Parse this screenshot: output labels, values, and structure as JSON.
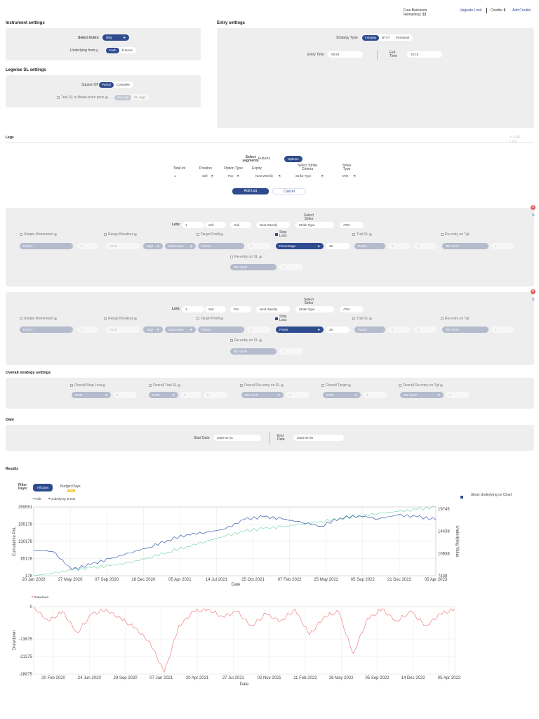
{
  "top": {
    "free_backtests": "Free Backtests",
    "remaining_label": "Remaining:",
    "remaining_value": "22",
    "upgrade": "Upgrade Limit",
    "credits_label": "Credits:",
    "credits_value": "6",
    "add_credits": "Add Credits"
  },
  "instrument": {
    "title": "Instrument settings",
    "select_index_label": "Select Index:",
    "select_index_value": "Nifty",
    "underlying_label": "Underlying from",
    "underlying_options": [
      "Cash",
      "Futures"
    ]
  },
  "legwise_sl": {
    "title": "Legwise SL settings",
    "square_off_label": "Square Off",
    "square_off_options": [
      "Partial",
      "Complete"
    ],
    "trail_label": "Trail SL to Break-even price",
    "trail_options": [
      "All Legs",
      "SL Legs"
    ]
  },
  "entry": {
    "title": "Entry settings",
    "strategy_type_label": "Strategy Type",
    "strategy_type_options": [
      "Intraday",
      "BTST",
      "Positional"
    ],
    "entry_time_label": "Entry Time",
    "entry_time_value": "09:20",
    "exit_time_label": "Exit Time",
    "exit_time_value": "15:15"
  },
  "legs": {
    "title": "Legs",
    "add_leg_corner": "+ Add Leg",
    "select_segments_label": "Select segments",
    "segments": [
      "Futures",
      "Options"
    ],
    "total_lot_label": "Total lot",
    "total_lot_value": "1",
    "position_label": "Position",
    "position_value": "Sell",
    "option_type_label": "Option Type",
    "option_type_value": "Put",
    "expiry_label": "Expiry",
    "expiry_value": "Next Weekly",
    "strike_criteria_label": "Select Strike Criteria",
    "strike_criteria_value": "Strike Type",
    "strike_type_label": "Strike Type",
    "strike_type_value": "ATM",
    "add_leg_button": "Add Leg",
    "cancel_button": "Cancel"
  },
  "leg_common": {
    "lots_label": "Lots:",
    "select_strike_label": "Select Strike",
    "simple_momentum": "Simple Momentum",
    "range_breakout": "Range Breakout",
    "target_profit": "Target Profit",
    "stop_loss": "Stop Loss",
    "trail_sl": "Trail SL",
    "reentry_tgt": "Re-entry on Tgt",
    "reentry_sl": "Re-entry on SL",
    "points": "Points ↑",
    "zero": "0",
    "time_val": "09:45",
    "high": "High",
    "instrument": "Instrument",
    "points_plain": "Points",
    "re_asap": "RE ASAP",
    "one": "1"
  },
  "leg1": {
    "lots": "1",
    "position": "Sell",
    "option_type": "Call",
    "expiry": "Next Weekly",
    "strike_criteria": "Strike Type",
    "strike": "ATM",
    "sl_type": "Percentage",
    "sl_value": "25"
  },
  "leg2": {
    "lots": "1",
    "position": "Sell",
    "option_type": "Put",
    "expiry": "Next Weekly",
    "strike_criteria": "Strike Type",
    "strike": "ATM",
    "sl_type": "Points",
    "sl_value": "25"
  },
  "overall": {
    "title": "Overall strategy settings",
    "overall_sl": "Overall Stop Loss",
    "overall_trail": "Overall Trail SL",
    "overall_reentry_sl": "Overall Re-entry on SL",
    "overall_target": "Overall Target",
    "overall_reentry_tgt": "Overall Re-entry on Tgt",
    "mtm": "MTM",
    "re_asap": "RE ASAP",
    "zero": "0",
    "one": "1"
  },
  "date": {
    "title": "Date",
    "start_label": "Start Date",
    "start_value": "2020-01-01",
    "end_label": "End Date",
    "end_value": "2023-04-06"
  },
  "results": {
    "title": "Results",
    "filter_days": "Filter Days:",
    "all_days": "All Days",
    "budget_days": "Budget Days",
    "new_badge": "New",
    "show_underlying": "Show Underlying on Chart"
  },
  "chart_data": [
    {
      "type": "line",
      "legend": [
        "Profit",
        "Underlying at Exit"
      ],
      "xlabel": "Date",
      "ylabel": "Cumulative PnL",
      "y2label": "Underlying Value",
      "x_ticks": [
        "20 Jan 2020",
        "27 May 2020",
        "07 Sep 2020",
        "18 Dec 2020",
        "05 Apr 2021",
        "14 Jul 2021",
        "25 Oct 2021",
        "07 Feb 2022",
        "25 May 2022",
        "05 Sep 2022",
        "21 Dec 2022",
        "05 Apr 2023"
      ],
      "y_ticks": [
        "259551",
        "195178",
        "130178",
        "65178",
        "178"
      ],
      "y2_ticks": [
        "19745",
        "14438",
        "10938",
        "7438"
      ],
      "ylim": [
        178,
        259551
      ],
      "y2lim": [
        7438,
        19745
      ],
      "series": [
        {
          "name": "Profit",
          "color": "#7fd8b0",
          "values": [
            178,
            10000,
            22000,
            30000,
            38000,
            50000,
            68000,
            90000,
            110000,
            130000,
            150000,
            168000,
            178000,
            185000,
            195000,
            205000,
            215000,
            225000,
            235000,
            242000,
            250000,
            259551
          ]
        },
        {
          "name": "Underlying at Exit",
          "color": "#3a5bb0",
          "values": [
            12000,
            11800,
            8500,
            9500,
            10500,
            11500,
            12500,
            13800,
            14800,
            15200,
            15800,
            17500,
            18000,
            17600,
            17000,
            16300,
            17800,
            18200,
            17600,
            18300,
            18000,
            17500
          ]
        }
      ]
    },
    {
      "type": "area",
      "legend": [
        "Drawdown"
      ],
      "xlabel": "Date",
      "ylabel": "Drawdown",
      "x_ticks": [
        "20 Feb 2020",
        "24 Jun 2020",
        "29 Sep 2020",
        "07 Jan 2021",
        "20 Apr 2021",
        "27 Jul 2021",
        "02 Nov 2021",
        "11 Feb 2022",
        "26 May 2022",
        "05 Sep 2022",
        "14 Dec 2022",
        "05 Apr 2023"
      ],
      "y_ticks": [
        "0",
        "-13875",
        "-21375",
        "-28875"
      ],
      "ylim": [
        -28875,
        0
      ],
      "series": [
        {
          "name": "Drawdown",
          "color": "#f08080",
          "values": [
            0,
            -6000,
            -2000,
            -11000,
            -3000,
            -1000,
            -5000,
            -9000,
            -15000,
            -28000,
            -8000,
            -2000,
            -1000,
            -4000,
            -2000,
            -8000,
            -3000,
            -6000,
            -1000,
            -12000,
            -4000,
            -2000,
            -20000,
            -5000,
            -1000,
            -6000,
            -2000,
            -8000,
            -3000,
            -1000
          ]
        }
      ]
    }
  ]
}
